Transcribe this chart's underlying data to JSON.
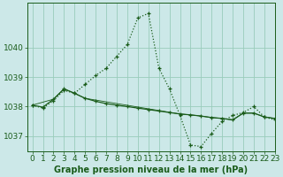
{
  "title": "Graphe pression niveau de la mer (hPa)",
  "background_color": "#cce8e8",
  "grid_color": "#99ccbb",
  "line_color": "#1a5c1a",
  "xlim": [
    -0.5,
    23
  ],
  "ylim": [
    1036.5,
    1041.5
  ],
  "yticks": [
    1037,
    1038,
    1039,
    1040
  ],
  "xticks": [
    0,
    1,
    2,
    3,
    4,
    5,
    6,
    7,
    8,
    9,
    10,
    11,
    12,
    13,
    14,
    15,
    16,
    17,
    18,
    19,
    20,
    21,
    22,
    23
  ],
  "s1_x": [
    0,
    1,
    2,
    3,
    4,
    5,
    6,
    7,
    8,
    9,
    10,
    11,
    12,
    13,
    14,
    15,
    16,
    17,
    18,
    19,
    20,
    21,
    22,
    23
  ],
  "s1_y": [
    1038.05,
    1037.95,
    1038.2,
    1038.55,
    1038.45,
    1038.75,
    1039.05,
    1039.3,
    1039.7,
    1040.1,
    1041.0,
    1041.15,
    1039.3,
    1038.6,
    1037.7,
    1036.7,
    1036.65,
    1037.1,
    1037.5,
    1037.7,
    1037.8,
    1038.0,
    1037.65,
    1037.55
  ],
  "s2_x": [
    0,
    1,
    2,
    3,
    4,
    5,
    6,
    7,
    8,
    9,
    10,
    11,
    12,
    13,
    14,
    15,
    16,
    17,
    18,
    19,
    20,
    21,
    22,
    23
  ],
  "s2_y": [
    1038.05,
    1037.98,
    1038.25,
    1038.6,
    1038.45,
    1038.28,
    1038.18,
    1038.1,
    1038.05,
    1038.0,
    1037.95,
    1037.9,
    1037.85,
    1037.8,
    1037.75,
    1037.72,
    1037.68,
    1037.63,
    1037.6,
    1037.55,
    1037.78,
    1037.78,
    1037.65,
    1037.6
  ],
  "s3_x": [
    0,
    2,
    3,
    4,
    5,
    14,
    15,
    16,
    17,
    18,
    19,
    20,
    21,
    22,
    23
  ],
  "s3_y": [
    1038.05,
    1038.25,
    1038.6,
    1038.45,
    1038.28,
    1037.75,
    1037.72,
    1037.68,
    1037.63,
    1037.6,
    1037.55,
    1037.78,
    1037.78,
    1037.65,
    1037.6
  ],
  "tick_fontsize": 6.5,
  "title_fontsize": 7.0
}
